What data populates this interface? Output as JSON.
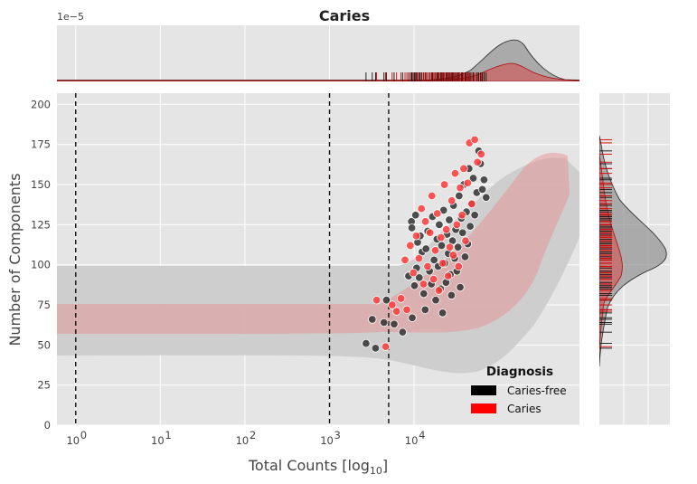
{
  "chart_data": {
    "type": "scatter",
    "title": "Caries",
    "xlabel": "Total Counts [log",
    "xlabel_sub": "10",
    "xlabel_close": "]",
    "ylabel": "Number of Components",
    "xscale": "log",
    "xlim": [
      0.6,
      900000
    ],
    "ylim": [
      0,
      207
    ],
    "x_ticks": [
      {
        "value": 1,
        "base": "10",
        "exp": "0"
      },
      {
        "value": 10,
        "base": "10",
        "exp": "1"
      },
      {
        "value": 100,
        "base": "10",
        "exp": "2"
      },
      {
        "value": 1000,
        "base": "10",
        "exp": "3"
      },
      {
        "value": 10000,
        "base": "10",
        "exp": "4"
      }
    ],
    "y_ticks": [
      "0",
      "25",
      "50",
      "75",
      "100",
      "125",
      "150",
      "175",
      "200"
    ],
    "grid": true,
    "vlines": [
      1,
      1000,
      5000
    ],
    "top_marginal_offset": "1e−5",
    "legend": {
      "title": "Diagnosis",
      "placement": "lower-right",
      "items": [
        {
          "label": "Caries-free",
          "color": "#000000"
        },
        {
          "label": "Caries",
          "color": "#ff0000"
        }
      ]
    },
    "series": [
      {
        "name": "Caries-free",
        "color": "#333333",
        "points": [
          [
            2700,
            51
          ],
          [
            3200,
            66
          ],
          [
            3500,
            48
          ],
          [
            4400,
            64
          ],
          [
            4700,
            78
          ],
          [
            5800,
            63
          ],
          [
            7300,
            58
          ],
          [
            8600,
            93
          ],
          [
            9300,
            127
          ],
          [
            9400,
            123
          ],
          [
            9500,
            67
          ],
          [
            10100,
            87
          ],
          [
            10400,
            131
          ],
          [
            10700,
            98
          ],
          [
            11000,
            114
          ],
          [
            11500,
            92
          ],
          [
            11800,
            118
          ],
          [
            12400,
            108
          ],
          [
            13000,
            82
          ],
          [
            13500,
            72
          ],
          [
            13800,
            110
          ],
          [
            14500,
            121
          ],
          [
            15200,
            96
          ],
          [
            16000,
            88
          ],
          [
            16500,
            130
          ],
          [
            17200,
            103
          ],
          [
            18000,
            78
          ],
          [
            18600,
            116
          ],
          [
            19200,
            99
          ],
          [
            19800,
            125
          ],
          [
            20500,
            85
          ],
          [
            21100,
            112
          ],
          [
            21700,
            70
          ],
          [
            22300,
            134
          ],
          [
            23000,
            101
          ],
          [
            23800,
            89
          ],
          [
            24500,
            119
          ],
          [
            25300,
            107
          ],
          [
            26000,
            128
          ],
          [
            26800,
            94
          ],
          [
            27600,
            81
          ],
          [
            28400,
            115
          ],
          [
            29200,
            137
          ],
          [
            30100,
            104
          ],
          [
            31000,
            122
          ],
          [
            32000,
            96
          ],
          [
            33000,
            111
          ],
          [
            34000,
            143
          ],
          [
            35000,
            86
          ],
          [
            36200,
            129
          ],
          [
            37400,
            120
          ],
          [
            38600,
            150
          ],
          [
            40000,
            105
          ],
          [
            41500,
            133
          ],
          [
            43000,
            113
          ],
          [
            44500,
            160
          ],
          [
            46000,
            124
          ],
          [
            48000,
            138
          ],
          [
            50000,
            154
          ],
          [
            52000,
            131
          ],
          [
            55000,
            145
          ],
          [
            58000,
            171
          ],
          [
            61000,
            163
          ],
          [
            64000,
            147
          ],
          [
            67000,
            153
          ],
          [
            71000,
            142
          ]
        ]
      },
      {
        "name": "Caries",
        "color": "#ff3b3b",
        "points": [
          [
            3600,
            78
          ],
          [
            4600,
            49
          ],
          [
            5500,
            75
          ],
          [
            6200,
            71
          ],
          [
            7000,
            79
          ],
          [
            7800,
            103
          ],
          [
            8200,
            72
          ],
          [
            9000,
            112
          ],
          [
            9800,
            95
          ],
          [
            10600,
            118
          ],
          [
            11400,
            104
          ],
          [
            12200,
            135
          ],
          [
            12900,
            88
          ],
          [
            13600,
            127
          ],
          [
            14400,
            99
          ],
          [
            15400,
            120
          ],
          [
            16200,
            143
          ],
          [
            17000,
            91
          ],
          [
            17800,
            109
          ],
          [
            18800,
            132
          ],
          [
            19600,
            84
          ],
          [
            20800,
            117
          ],
          [
            21800,
            101
          ],
          [
            22800,
            150
          ],
          [
            24000,
            122
          ],
          [
            25200,
            93
          ],
          [
            26400,
            111
          ],
          [
            27800,
            140
          ],
          [
            29000,
            106
          ],
          [
            30500,
            157
          ],
          [
            32000,
            125
          ],
          [
            33500,
            99
          ],
          [
            35000,
            148
          ],
          [
            36800,
            131
          ],
          [
            38500,
            160
          ],
          [
            40500,
            115
          ],
          [
            43000,
            151
          ],
          [
            45000,
            176
          ],
          [
            48000,
            138
          ],
          [
            52000,
            178
          ],
          [
            56000,
            164
          ],
          [
            62000,
            169
          ]
        ]
      }
    ]
  }
}
